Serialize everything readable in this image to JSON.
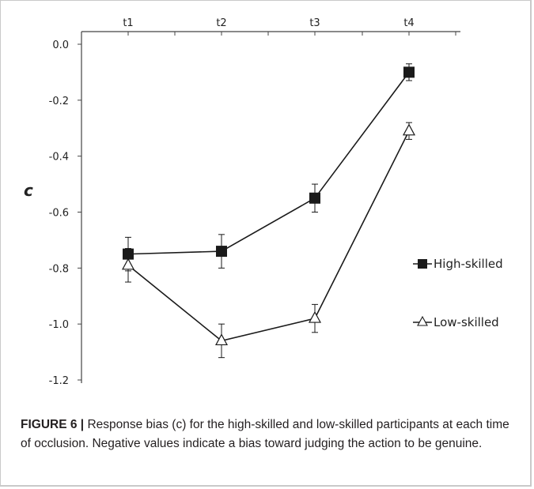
{
  "chart_data": {
    "type": "line",
    "categories": [
      "t1",
      "t2",
      "t3",
      "t4"
    ],
    "ylabel": "c",
    "ylim": [
      -1.2,
      0.0
    ],
    "yticks": [
      0.0,
      -0.2,
      -0.4,
      -0.6,
      -0.8,
      -1.0,
      -1.2
    ],
    "ytick_labels": [
      "0.0",
      "-0.2",
      "-0.4",
      "-0.6",
      "-0.8",
      "-1.0",
      "-1.2"
    ],
    "x_axis_position": "top",
    "grid": false,
    "legend_position": "right",
    "series": [
      {
        "name": "High-skilled",
        "marker": "filled-square",
        "values": [
          -0.75,
          -0.74,
          -0.55,
          -0.1
        ],
        "error": [
          0.06,
          0.06,
          0.05,
          0.03
        ]
      },
      {
        "name": "Low-skilled",
        "marker": "open-triangle",
        "values": [
          -0.79,
          -1.06,
          -0.98,
          -0.31
        ],
        "error": [
          0.06,
          0.06,
          0.05,
          0.03
        ]
      }
    ]
  },
  "caption": {
    "lead": "FIGURE 6 |",
    "text": " Response bias (c) for the high-skilled and low-skilled participants at each time of occlusion. Negative values indicate a bias toward judging the action to be genuine."
  },
  "colors": {
    "line": "#1a1a1a",
    "axis": "#444444",
    "caption_text": "#231f20"
  }
}
